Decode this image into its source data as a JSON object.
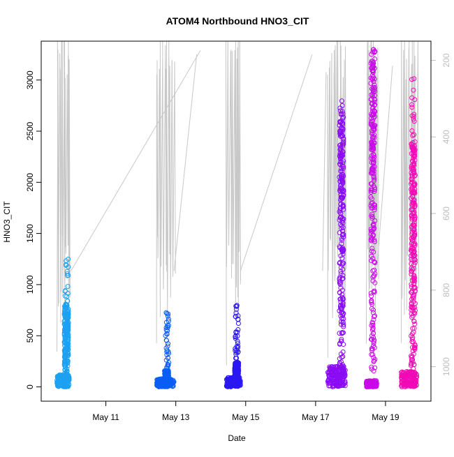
{
  "chart_data": {
    "type": "scatter",
    "title": "ATOM4 Northbound HNO3_CIT",
    "xlabel": "Date",
    "ylabel": "HNO3_CIT",
    "x_ticks": [
      "May 11",
      "May 13",
      "May 15",
      "May 17",
      "May 19"
    ],
    "x_tick_days": [
      11,
      13,
      15,
      17,
      19
    ],
    "xlim_days": [
      9.15,
      20.3
    ],
    "ylim": [
      -140,
      3380
    ],
    "y_ticks": [
      0,
      500,
      1000,
      1500,
      2000,
      2500,
      3000
    ],
    "right_axis": {
      "reversed": true,
      "ylim": [
        1090,
        150
      ],
      "ticks": [
        200,
        400,
        600,
        800,
        1000
      ],
      "color": "#bdbdbd"
    },
    "series": [
      {
        "color": "#1da1f2",
        "day": 9.93,
        "day_range": [
          9.6,
          9.95
        ],
        "dense_max": 800,
        "sparse_max": 1250,
        "base_max": 120
      },
      {
        "color": "#0a5ef5",
        "day": 12.8,
        "day_range": [
          12.45,
          12.95
        ],
        "dense_max": 160,
        "sparse_max": 730,
        "base_max": 80
      },
      {
        "color": "#2a18f2",
        "day": 14.8,
        "day_range": [
          14.45,
          14.85
        ],
        "dense_max": 240,
        "sparse_max": 830,
        "base_max": 90
      },
      {
        "color": "#8a0bf5",
        "day": 17.8,
        "day_range": [
          17.35,
          17.85
        ],
        "dense_max": 2700,
        "sparse_max": 2800,
        "base_max": 200
      },
      {
        "color": "#c90ae8",
        "day": 18.7,
        "day_range": [
          18.45,
          18.75
        ],
        "dense_max": 3280,
        "sparse_max": 3300,
        "base_max": 60
      },
      {
        "color": "#f20ab6",
        "day": 19.85,
        "day_range": [
          19.45,
          19.9
        ],
        "dense_max": 2400,
        "sparse_max": 3030,
        "base_max": 150
      }
    ]
  }
}
